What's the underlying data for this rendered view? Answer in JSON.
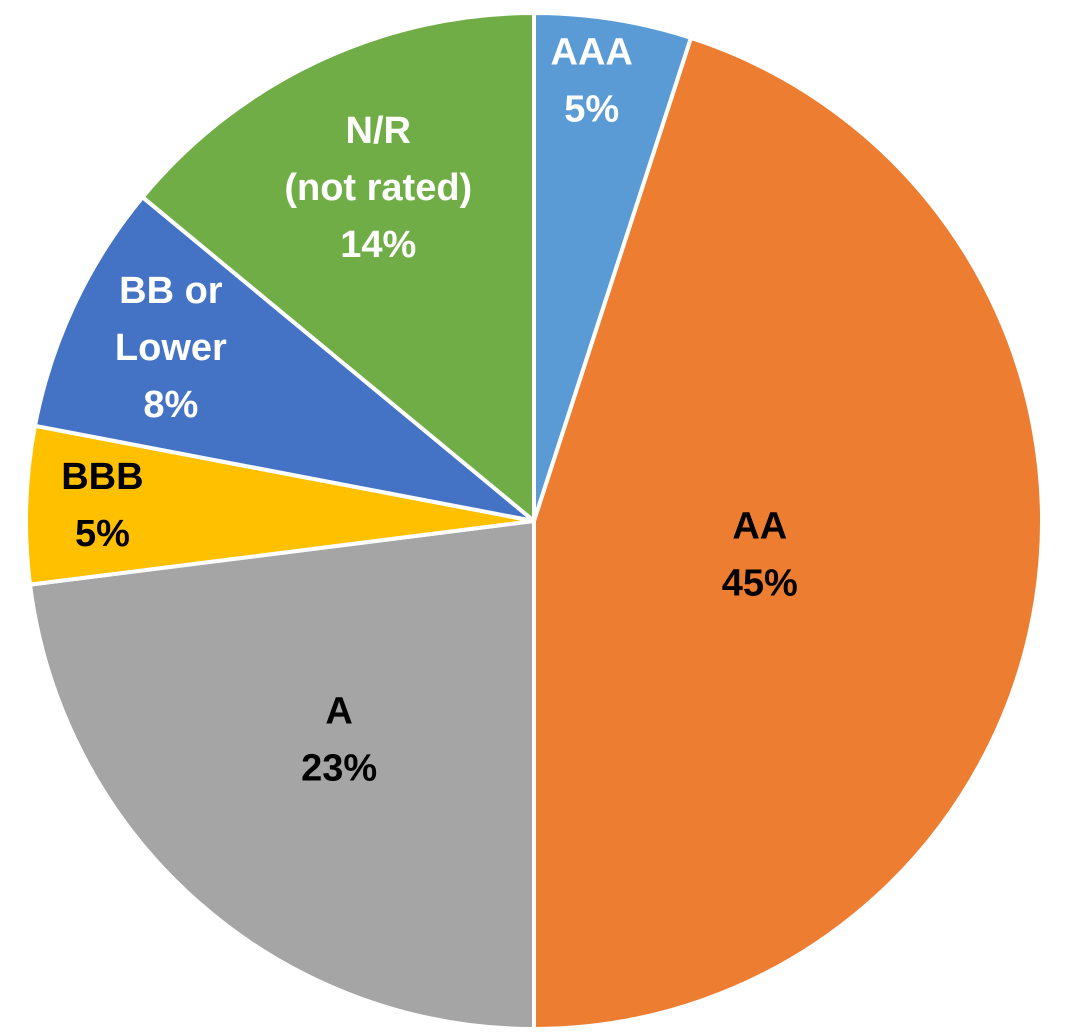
{
  "chart_data": {
    "type": "pie",
    "title": "",
    "start_angle_deg": 0,
    "direction": "clockwise",
    "slices": [
      {
        "label_lines": [
          "AAA",
          "5%"
        ],
        "category": "AAA",
        "value": 5,
        "color": "#5B9BD5",
        "label_color": "#FFFFFF"
      },
      {
        "label_lines": [
          "AA",
          "45%"
        ],
        "category": "AA",
        "value": 45,
        "color": "#ED7D31",
        "label_color": "#000000"
      },
      {
        "label_lines": [
          "A",
          "23%"
        ],
        "category": "A",
        "value": 23,
        "color": "#A5A5A5",
        "label_color": "#000000"
      },
      {
        "label_lines": [
          "BBB",
          "5%"
        ],
        "category": "BBB",
        "value": 5,
        "color": "#FFC000",
        "label_color": "#000000"
      },
      {
        "label_lines": [
          "BB or",
          "Lower",
          "8%"
        ],
        "category": "BB or Lower",
        "value": 8,
        "color": "#4472C4",
        "label_color": "#FFFFFF"
      },
      {
        "label_lines": [
          "N/R",
          "(not rated)",
          "14%"
        ],
        "category": "N/R (not rated)",
        "value": 14,
        "color": "#70AD47",
        "label_color": "#FFFFFF"
      }
    ]
  }
}
